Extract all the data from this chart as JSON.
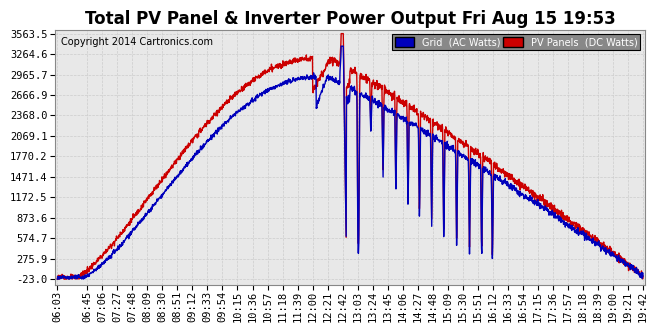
{
  "title": "Total PV Panel & Inverter Power Output Fri Aug 15 19:53",
  "copyright": "Copyright 2014 Cartronics.com",
  "legend_grid": "Grid  (AC Watts)",
  "legend_pv": "PV Panels  (DC Watts)",
  "legend_grid_bg": "#0000bb",
  "legend_pv_bg": "#cc0000",
  "grid_line_color": "#0000bb",
  "pv_line_color": "#cc0000",
  "bg_color": "#ffffff",
  "plot_bg": "#e8e8e8",
  "gridline_style_color": "#cccccc",
  "yticks": [
    3563.5,
    3264.6,
    2965.7,
    2666.9,
    2368.0,
    2069.1,
    1770.2,
    1471.4,
    1172.5,
    873.6,
    574.7,
    275.9,
    -23.0
  ],
  "xtick_labels": [
    "06:03",
    "06:45",
    "07:06",
    "07:27",
    "07:48",
    "08:09",
    "08:30",
    "08:51",
    "09:12",
    "09:33",
    "09:54",
    "10:15",
    "10:36",
    "10:57",
    "11:18",
    "11:39",
    "12:00",
    "12:21",
    "12:42",
    "13:03",
    "13:24",
    "13:45",
    "14:06",
    "14:27",
    "14:48",
    "15:09",
    "15:30",
    "15:51",
    "16:12",
    "16:33",
    "16:54",
    "17:15",
    "17:36",
    "17:57",
    "18:18",
    "18:39",
    "19:00",
    "19:21",
    "19:42"
  ],
  "ymin": -23.0,
  "ymax": 3563.5,
  "title_fontsize": 12,
  "tick_fontsize": 7.5,
  "copyright_fontsize": 7,
  "line_width": 1.0
}
